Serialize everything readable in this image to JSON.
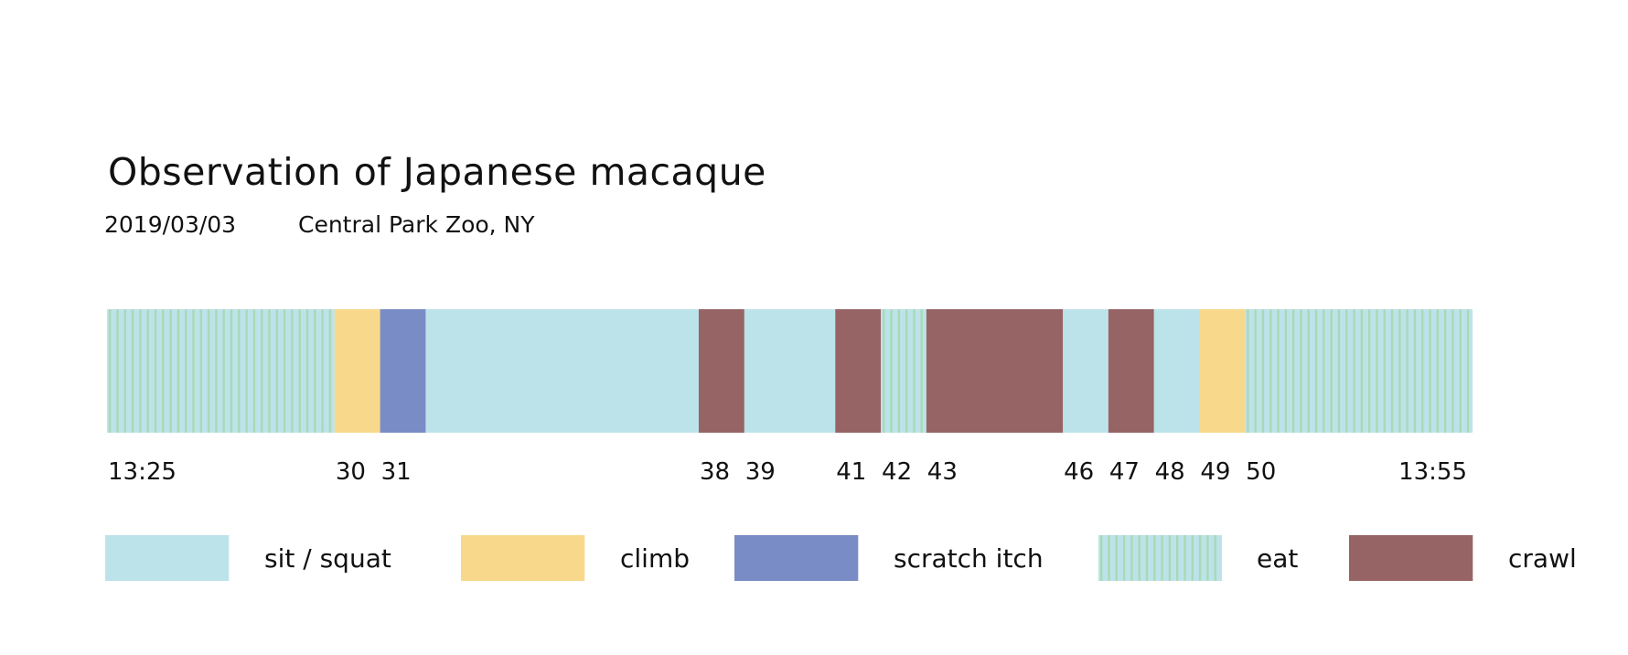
{
  "header": {
    "title": "Observation of Japanese macaque",
    "date": "2019/03/03",
    "location": "Central Park Zoo, NY"
  },
  "colors": {
    "sit / squat": "#bde3ea",
    "climb": "#f8d98c",
    "scratch itch": "#7a8cc6",
    "eat": "#a9d9b5",
    "crawl": "#966464"
  },
  "chart_data": {
    "type": "timeline",
    "unit": "minutes past 13:00",
    "x_start": 25,
    "x_end": 55,
    "segments": [
      {
        "start": 25,
        "end": 30,
        "behavior": "eat"
      },
      {
        "start": 30,
        "end": 31,
        "behavior": "climb"
      },
      {
        "start": 31,
        "end": 32,
        "behavior": "scratch itch"
      },
      {
        "start": 32,
        "end": 38,
        "behavior": "sit / squat"
      },
      {
        "start": 38,
        "end": 39,
        "behavior": "crawl"
      },
      {
        "start": 39,
        "end": 41,
        "behavior": "sit / squat"
      },
      {
        "start": 41,
        "end": 42,
        "behavior": "crawl"
      },
      {
        "start": 42,
        "end": 43,
        "behavior": "eat"
      },
      {
        "start": 43,
        "end": 46,
        "behavior": "crawl"
      },
      {
        "start": 46,
        "end": 47,
        "behavior": "sit / squat"
      },
      {
        "start": 47,
        "end": 48,
        "behavior": "crawl"
      },
      {
        "start": 48,
        "end": 49,
        "behavior": "sit / squat"
      },
      {
        "start": 49,
        "end": 50,
        "behavior": "climb"
      },
      {
        "start": 50,
        "end": 55,
        "behavior": "eat"
      }
    ],
    "ticks": [
      {
        "value": 25,
        "label": "13:25"
      },
      {
        "value": 30,
        "label": "30"
      },
      {
        "value": 31,
        "label": "31"
      },
      {
        "value": 38,
        "label": "38"
      },
      {
        "value": 39,
        "label": "39"
      },
      {
        "value": 41,
        "label": "41"
      },
      {
        "value": 42,
        "label": "42"
      },
      {
        "value": 43,
        "label": "43"
      },
      {
        "value": 46,
        "label": "46"
      },
      {
        "value": 47,
        "label": "47"
      },
      {
        "value": 48,
        "label": "48"
      },
      {
        "value": 49,
        "label": "49"
      },
      {
        "value": 50,
        "label": "50"
      },
      {
        "value": 55,
        "label": "13:55"
      }
    ],
    "legend": [
      "sit / squat",
      "climb",
      "scratch itch",
      "eat",
      "crawl"
    ],
    "legend_placement": "bottom"
  }
}
